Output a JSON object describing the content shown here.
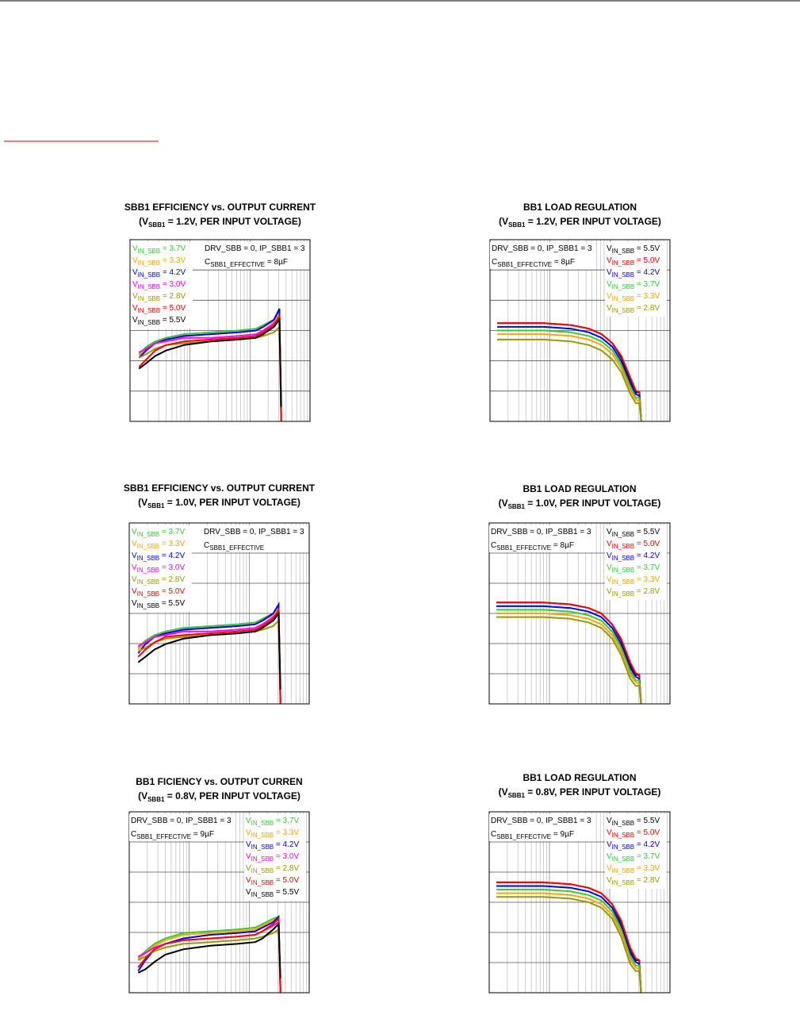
{
  "chart_data": [
    {
      "type": "line",
      "title": "SBB1 EFFICIENCY vs. OUTPUT CURRENT",
      "subtitle": [
        "(V",
        "SBB1",
        " = 1.2V, PER INPUT VOLTAGE)"
      ],
      "legend": "upper left",
      "grid": true,
      "xlim": [
        0,
        100
      ],
      "ylim": [
        0,
        100
      ],
      "annotations": [
        [
          "DRV_SBB = 0, IP_SBB1 = 3"
        ],
        [
          "C",
          "SBB1_EFFECTIVE",
          " = 8µF"
        ]
      ],
      "x": [
        5,
        9,
        14,
        20,
        30,
        45,
        60,
        70,
        74,
        80,
        83,
        84
      ],
      "series": [
        {
          "name": [
            "V",
            "IN_SBB",
            " = 3.7V"
          ],
          "color": "#33cc33",
          "values": [
            37,
            41,
            44,
            46,
            48,
            49,
            50,
            51,
            53,
            56,
            61,
            0
          ]
        },
        {
          "name": [
            "V",
            "IN_SBB",
            " = 3.3V"
          ],
          "color": "#ffa500",
          "values": [
            36,
            40,
            43,
            45,
            47,
            48,
            49,
            50,
            52,
            55,
            59,
            0
          ]
        },
        {
          "name": [
            "V",
            "IN_SBB",
            " = 4.2V"
          ],
          "color": "#0000ff",
          "values": [
            35,
            39,
            43,
            45,
            47,
            48,
            49,
            50,
            52,
            56,
            62,
            2
          ]
        },
        {
          "name": [
            "V",
            "IN_SBB",
            " = 3.0V"
          ],
          "color": "#ff00ff",
          "values": [
            38,
            40,
            43,
            44,
            46,
            46,
            47,
            48,
            50,
            54,
            57,
            0
          ]
        },
        {
          "name": [
            "V",
            "IN_SBB",
            " = 2.8V"
          ],
          "color": "#999900",
          "values": [
            35,
            37,
            40,
            42,
            43,
            44,
            45,
            46,
            47,
            49,
            52,
            5
          ]
        },
        {
          "name": [
            "V",
            "IN_SBB",
            " = 5.0V"
          ],
          "color": "#ff0000",
          "values": [
            30,
            34,
            39,
            42,
            44,
            45,
            46,
            47,
            49,
            53,
            58,
            0
          ]
        },
        {
          "name": [
            "V",
            "IN_SBB",
            " = 5.5V"
          ],
          "color": "#000000",
          "values": [
            29,
            32,
            36,
            39,
            42,
            44,
            45,
            46,
            48,
            52,
            56,
            8
          ]
        }
      ]
    },
    {
      "type": "line",
      "title": "BB1 LOAD REGULATION",
      "subtitle": [
        "(V",
        "SBB1",
        " = 1.2V, PER INPUT VOLTAGE)"
      ],
      "legend": "upper right",
      "grid": true,
      "xlim": [
        0,
        100
      ],
      "ylim": [
        0,
        100
      ],
      "annotations": [
        [
          "DRV_SBB = 0, IP_SBB1 = 3"
        ],
        [
          "C",
          "SBB1_EFFECTIVE",
          " = 8µF"
        ]
      ],
      "x": [
        4,
        15,
        30,
        45,
        55,
        62,
        68,
        73,
        78,
        81,
        83,
        84
      ],
      "series": [
        {
          "name": [
            "V",
            "IN_SBB",
            " = 5.5V"
          ],
          "color": "#000000",
          "values": [
            54,
            54,
            54,
            53,
            51,
            48,
            43,
            35,
            23,
            16,
            16,
            0
          ]
        },
        {
          "name": [
            "V",
            "IN_SBB",
            " = 5.0V"
          ],
          "color": "#ff0000",
          "values": [
            54,
            54,
            54,
            53,
            51,
            48,
            43,
            36,
            24,
            17,
            16,
            0
          ]
        },
        {
          "name": [
            "V",
            "IN_SBB",
            " = 4.2V"
          ],
          "color": "#0000ff",
          "values": [
            52,
            52,
            52,
            51,
            49,
            46,
            41,
            33,
            21,
            15,
            14,
            0
          ]
        },
        {
          "name": [
            "V",
            "IN_SBB",
            " = 3.7V"
          ],
          "color": "#33cc33",
          "values": [
            50,
            50,
            50,
            49,
            47,
            44,
            39,
            31,
            19,
            13,
            13,
            0
          ]
        },
        {
          "name": [
            "V",
            "IN_SBB",
            " = 3.3V"
          ],
          "color": "#ffa500",
          "values": [
            48,
            48,
            48,
            47,
            45,
            42,
            37,
            29,
            17,
            12,
            11,
            0
          ]
        },
        {
          "name": [
            "V",
            "IN_SBB",
            " = 2.8V"
          ],
          "color": "#999900",
          "values": [
            45,
            45,
            45,
            44,
            42,
            39,
            34,
            27,
            15,
            10,
            10,
            0
          ]
        }
      ]
    },
    {
      "type": "line",
      "title": "SBB1 EFFICIENCY vs. OUTPUT CURRENT",
      "subtitle": [
        "(V",
        "SBB1",
        " = 1.0V, PER INPUT VOLTAGE)"
      ],
      "legend": "upper left",
      "grid": true,
      "xlim": [
        0,
        100
      ],
      "ylim": [
        0,
        100
      ],
      "annotations": [
        [
          "DRV_SBB = 0, IP_SBB1 = 3"
        ],
        [
          "C",
          "SBB1_EFFECTIVE"
        ]
      ],
      "x": [
        5,
        9,
        14,
        20,
        30,
        45,
        60,
        70,
        74,
        80,
        83,
        84
      ],
      "series": [
        {
          "name": [
            "V",
            "IN_SBB",
            " = 3.7V"
          ],
          "color": "#33cc33",
          "values": [
            31,
            35,
            38,
            40,
            42,
            43,
            44,
            45,
            47,
            50,
            54,
            0
          ]
        },
        {
          "name": [
            "V",
            "IN_SBB",
            " = 3.3V"
          ],
          "color": "#ffa500",
          "values": [
            30,
            34,
            37,
            39,
            41,
            42,
            43,
            44,
            46,
            49,
            53,
            0
          ]
        },
        {
          "name": [
            "V",
            "IN_SBB",
            " = 4.2V"
          ],
          "color": "#0000ff",
          "values": [
            28,
            33,
            37,
            39,
            41,
            42,
            43,
            44,
            46,
            50,
            55,
            2
          ]
        },
        {
          "name": [
            "V",
            "IN_SBB",
            " = 3.0V"
          ],
          "color": "#ff00ff",
          "values": [
            32,
            34,
            37,
            38,
            40,
            40,
            41,
            42,
            44,
            48,
            51,
            0
          ]
        },
        {
          "name": [
            "V",
            "IN_SBB",
            " = 2.8V"
          ],
          "color": "#999900",
          "values": [
            29,
            31,
            34,
            36,
            37,
            38,
            39,
            40,
            41,
            43,
            46,
            5
          ]
        },
        {
          "name": [
            "V",
            "IN_SBB",
            " = 5.0V"
          ],
          "color": "#ff0000",
          "values": [
            26,
            30,
            34,
            37,
            38,
            39,
            40,
            41,
            43,
            47,
            52,
            0
          ]
        },
        {
          "name": [
            "V",
            "IN_SBB",
            " = 5.5V"
          ],
          "color": "#000000",
          "values": [
            23,
            26,
            30,
            33,
            36,
            38,
            39,
            40,
            42,
            46,
            50,
            8
          ]
        }
      ]
    },
    {
      "type": "line",
      "title": "BB1 LOAD REGULATION",
      "subtitle": [
        "(V",
        "SBB1",
        " = 1.0V, PER INPUT VOLTAGE)"
      ],
      "legend": "upper right",
      "grid": true,
      "xlim": [
        0,
        100
      ],
      "ylim": [
        0,
        100
      ],
      "annotations": [
        [
          "DRV_SBB = 0, IP_SBB1 = 3"
        ],
        [
          "C",
          "SBB1_EFFECTIVE",
          " = 8µF"
        ]
      ],
      "x": [
        4,
        15,
        30,
        45,
        55,
        62,
        68,
        73,
        78,
        81,
        83,
        84
      ],
      "series": [
        {
          "name": [
            "V",
            "IN_SBB",
            " = 5.5V"
          ],
          "color": "#000000",
          "values": [
            56,
            56,
            56,
            55,
            53,
            50,
            44,
            35,
            22,
            16,
            16,
            0
          ]
        },
        {
          "name": [
            "V",
            "IN_SBB",
            " = 5.0V"
          ],
          "color": "#ff0000",
          "values": [
            56,
            56,
            56,
            55,
            53,
            50,
            44,
            36,
            23,
            17,
            16,
            0
          ]
        },
        {
          "name": [
            "V",
            "IN_SBB",
            " = 4.2V"
          ],
          "color": "#0000ff",
          "values": [
            54,
            54,
            54,
            53,
            51,
            48,
            42,
            33,
            20,
            15,
            14,
            0
          ]
        },
        {
          "name": [
            "V",
            "IN_SBB",
            " = 3.7V"
          ],
          "color": "#33cc33",
          "values": [
            52,
            52,
            52,
            51,
            49,
            46,
            40,
            31,
            18,
            13,
            13,
            0
          ]
        },
        {
          "name": [
            "V",
            "IN_SBB",
            " = 3.3V"
          ],
          "color": "#ffa500",
          "values": [
            50,
            50,
            50,
            49,
            47,
            44,
            38,
            29,
            16,
            12,
            11,
            0
          ]
        },
        {
          "name": [
            "V",
            "IN_SBB",
            " = 2.8V"
          ],
          "color": "#999900",
          "values": [
            48,
            48,
            48,
            47,
            45,
            42,
            36,
            27,
            14,
            10,
            10,
            0
          ]
        }
      ]
    },
    {
      "type": "line",
      "title": "BB1      FICIENCY vs. OUTPUT CURREN",
      "subtitle": [
        "(V",
        "SBB1",
        " = 0.8V, PER INPUT VOLTAGE)"
      ],
      "legend": "upper right",
      "grid": true,
      "xlim": [
        0,
        100
      ],
      "ylim": [
        0,
        100
      ],
      "annotations": [
        [
          "DRV_SBB = 0, IP_SBB1 = 3"
        ],
        [
          "C",
          "SBB1_EFFECTIVE",
          " = 9µF"
        ]
      ],
      "x": [
        5,
        9,
        14,
        20,
        30,
        45,
        60,
        70,
        74,
        80,
        83,
        84
      ],
      "series": [
        {
          "name": [
            "V",
            "IN_SBB",
            " = 3.7V"
          ],
          "color": "#33cc33",
          "values": [
            19,
            23,
            27,
            30,
            33,
            34,
            35,
            36,
            38,
            41,
            42,
            0
          ]
        },
        {
          "name": [
            "V",
            "IN_SBB",
            " = 3.3V"
          ],
          "color": "#ffa500",
          "values": [
            18,
            22,
            26,
            29,
            32,
            33,
            34,
            35,
            37,
            40,
            41,
            0
          ]
        },
        {
          "name": [
            "V",
            "IN_SBB",
            " = 4.2V"
          ],
          "color": "#0000ff",
          "values": [
            12,
            18,
            24,
            27,
            30,
            32,
            33,
            34,
            36,
            39,
            42,
            2
          ]
        },
        {
          "name": [
            "V",
            "IN_SBB",
            " = 3.0V"
          ],
          "color": "#ff00ff",
          "values": [
            20,
            22,
            25,
            27,
            29,
            30,
            31,
            32,
            34,
            37,
            39,
            0
          ]
        },
        {
          "name": [
            "V",
            "IN_SBB",
            " = 2.8V"
          ],
          "color": "#999900",
          "values": [
            18,
            20,
            23,
            25,
            27,
            28,
            29,
            30,
            31,
            33,
            35,
            5
          ]
        },
        {
          "name": [
            "V",
            "IN_SBB",
            " = 5.0V"
          ],
          "color": "#ff0000",
          "values": [
            14,
            19,
            24,
            27,
            29,
            30,
            31,
            32,
            34,
            38,
            41,
            0
          ]
        },
        {
          "name": [
            "V",
            "IN_SBB",
            " = 5.5V"
          ],
          "color": "#000000",
          "values": [
            11,
            13,
            17,
            21,
            24,
            26,
            27,
            28,
            30,
            35,
            38,
            8
          ]
        }
      ]
    },
    {
      "type": "line",
      "title": "BB1 LOAD REGULATION",
      "subtitle": [
        "(V",
        "SBB1",
        " = 0.8V, PER INPUT VOLTAGE)"
      ],
      "legend": "upper right",
      "grid": true,
      "xlim": [
        0,
        100
      ],
      "ylim": [
        0,
        100
      ],
      "annotations": [
        [
          "DRV_SBB = 0, IP_SBB1 = 3"
        ],
        [
          "C",
          "SBB1_EFFECTIVE",
          " = 9µF"
        ]
      ],
      "x": [
        4,
        15,
        30,
        45,
        55,
        62,
        68,
        73,
        78,
        81,
        83,
        84
      ],
      "series": [
        {
          "name": [
            "V",
            "IN_SBB",
            " = 5.5V"
          ],
          "color": "#000000",
          "values": [
            61,
            61,
            61,
            60,
            58,
            55,
            49,
            39,
            24,
            18,
            18,
            0
          ]
        },
        {
          "name": [
            "V",
            "IN_SBB",
            " = 5.0V"
          ],
          "color": "#ff0000",
          "values": [
            61,
            61,
            61,
            60,
            58,
            55,
            49,
            40,
            25,
            19,
            18,
            0
          ]
        },
        {
          "name": [
            "V",
            "IN_SBB",
            " = 4.2V"
          ],
          "color": "#0000ff",
          "values": [
            59,
            59,
            59,
            58,
            56,
            53,
            47,
            37,
            22,
            17,
            16,
            0
          ]
        },
        {
          "name": [
            "V",
            "IN_SBB",
            " = 3.7V"
          ],
          "color": "#33cc33",
          "values": [
            57,
            57,
            57,
            56,
            54,
            51,
            45,
            35,
            20,
            15,
            15,
            0
          ]
        },
        {
          "name": [
            "V",
            "IN_SBB",
            " = 3.3V"
          ],
          "color": "#ffa500",
          "values": [
            55,
            55,
            55,
            54,
            52,
            49,
            43,
            33,
            18,
            14,
            13,
            0
          ]
        },
        {
          "name": [
            "V",
            "IN_SBB",
            " = 2.8V"
          ],
          "color": "#999900",
          "values": [
            53,
            53,
            53,
            52,
            50,
            47,
            41,
            31,
            16,
            12,
            12,
            0
          ]
        }
      ]
    }
  ]
}
